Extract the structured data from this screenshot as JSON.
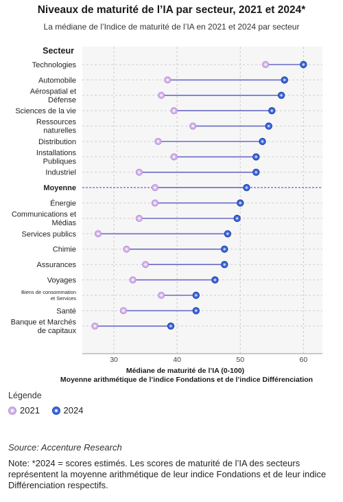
{
  "header": {
    "title": "Niveaux de maturité de l’IA par secteur, 2021 et 2024*",
    "subtitle": "La médiane de l’Indice de maturité de l’IA en 2021 et 2024 par secteur"
  },
  "legend": {
    "title": "Légende",
    "items": [
      "2021",
      "2024"
    ]
  },
  "footer": {
    "source": "Source: Accenture Research",
    "note": "Note: *2024 = scores estimés. Les scores de maturité de l’IA des secteurs représentent la moyenne arithmétique de leur indice Fondations et de leur indice Différenciation respectifs."
  },
  "chart_data": {
    "type": "dumbbell",
    "ylabel": "Secteur",
    "xlabel": "Médiane de maturité de l’IA (0-100)",
    "xlabel2": "Moyenne arithmétique de l’indice Fondations et de l’indice Différenciation",
    "xlim": [
      25,
      63
    ],
    "xticks": [
      30,
      40,
      50,
      60
    ],
    "grid": true,
    "colors": {
      "y2021": "#d6b6ec",
      "y2021_stroke": "#b78ad8",
      "y2024": "#3f6fe0",
      "y2024_stroke": "#1f3fa8",
      "average": "#9a5bd6"
    },
    "series": [
      {
        "name": "2021",
        "values": [
          54,
          38.5,
          37.5,
          39.5,
          42.5,
          37,
          39.5,
          34,
          36.5,
          36.5,
          34,
          27.5,
          32,
          35,
          33,
          37.5,
          31.5,
          27
        ]
      },
      {
        "name": "2024",
        "values": [
          60,
          57,
          56.5,
          55,
          54.5,
          53.5,
          52.5,
          52.5,
          51,
          50,
          49.5,
          48,
          47.5,
          47.5,
          46,
          43,
          43,
          39
        ]
      }
    ],
    "categories": [
      {
        "label": [
          "Technologies"
        ]
      },
      {
        "label": [
          "Automobile"
        ]
      },
      {
        "label": [
          "Aérospatial et",
          "Défense"
        ]
      },
      {
        "label": [
          "Sciences de la vie"
        ]
      },
      {
        "label": [
          "Ressources",
          "naturelles"
        ]
      },
      {
        "label": [
          "Distribution"
        ]
      },
      {
        "label": [
          "Installations",
          "Publiques"
        ]
      },
      {
        "label": [
          "Industriel"
        ]
      },
      {
        "label": [
          "Moyenne"
        ],
        "average": true
      },
      {
        "label": [
          "Énergie"
        ]
      },
      {
        "label": [
          "Communications et",
          "Médias"
        ]
      },
      {
        "label": [
          "Services publics"
        ]
      },
      {
        "label": [
          "Chimie"
        ]
      },
      {
        "label": [
          "Assurances"
        ]
      },
      {
        "label": [
          "Voyages"
        ]
      },
      {
        "label": [
          "Biens de consommation",
          "et Services"
        ],
        "small": true
      },
      {
        "label": [
          "Santé"
        ]
      },
      {
        "label": [
          "Banque et Marchés",
          "de capitaux"
        ]
      }
    ]
  }
}
